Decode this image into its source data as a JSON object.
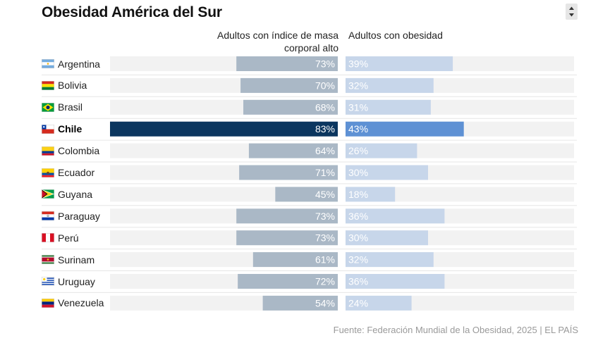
{
  "title": "Obesidad América del Sur",
  "source": "Fuente: Federación Mundial de la Obesidad, 2025 | EL PAÍS",
  "colors": {
    "track": "#f2f2f2",
    "bmi_bar": "#aab8c6",
    "obesity_bar": "#c7d6ea",
    "highlight_bmi": "#0b365f",
    "highlight_obesity": "#5e91d4",
    "bar_label": "#ffffff",
    "divider": "#e6e6e6"
  },
  "chart_data": {
    "type": "bar",
    "orientation": "horizontal",
    "categories": [
      "Argentina",
      "Bolivia",
      "Brasil",
      "Chile",
      "Colombia",
      "Ecuador",
      "Guyana",
      "Paraguay",
      "Perú",
      "Surinam",
      "Uruguay",
      "Venezuela"
    ],
    "flags": [
      "argentina-flag-icon",
      "bolivia-flag-icon",
      "brazil-flag-icon",
      "chile-flag-icon",
      "colombia-flag-icon",
      "ecuador-flag-icon",
      "guyana-flag-icon",
      "paraguay-flag-icon",
      "peru-flag-icon",
      "suriname-flag-icon",
      "uruguay-flag-icon",
      "venezuela-flag-icon"
    ],
    "highlight": "Chile",
    "series": [
      {
        "name": "Adultos con índice de masa corporal alto",
        "values": [
          73,
          70,
          68,
          83,
          64,
          71,
          45,
          73,
          73,
          61,
          72,
          54
        ],
        "labels": [
          "73%",
          "70%",
          "68%",
          "83%",
          "64%",
          "71%",
          "45%",
          "73%",
          "73%",
          "61%",
          "72%",
          "54%"
        ],
        "align": "right",
        "xlim": [
          0,
          100
        ]
      },
      {
        "name": "Adultos con obesidad",
        "values": [
          39,
          32,
          31,
          43,
          26,
          30,
          18,
          36,
          30,
          32,
          36,
          24
        ],
        "labels": [
          "39%",
          "32%",
          "31%",
          "43%",
          "26%",
          "30%",
          "18%",
          "36%",
          "30%",
          "32%",
          "36%",
          "24%"
        ],
        "align": "left",
        "xlim": [
          0,
          100
        ]
      }
    ]
  }
}
